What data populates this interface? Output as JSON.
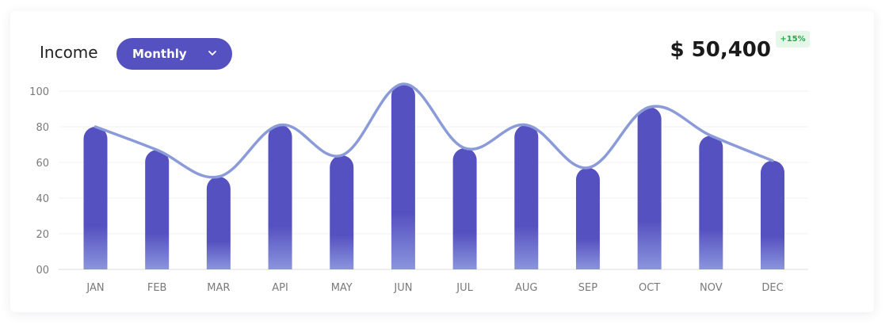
{
  "header": {
    "title": "Income",
    "period_selector": {
      "selected": "Monthly"
    },
    "total_amount": "$ 50,400",
    "change_badge": "+15%"
  },
  "colors": {
    "bar_top": "#5651c0",
    "bar_bottom": "#8a95dd",
    "line": "#8b9ad9",
    "dropdown_bg": "#5651c0",
    "badge_bg": "#e6f7ea",
    "badge_text": "#22a845",
    "grid": "#f0f0f0",
    "axis": "#dddddd"
  },
  "icons": {
    "dropdown": "chevron-down-icon"
  },
  "chart_data": {
    "type": "bar",
    "categories": [
      "JAN",
      "FEB",
      "MAR",
      "API",
      "MAY",
      "JUN",
      "JUL",
      "AUG",
      "SEP",
      "OCT",
      "NOV",
      "DEC"
    ],
    "values": [
      80,
      67,
      52,
      81,
      64,
      104,
      68,
      81,
      57,
      91,
      75,
      61
    ],
    "line_overlay_values": [
      80,
      67,
      52,
      81,
      64,
      104,
      68,
      81,
      57,
      91,
      75,
      61
    ],
    "yticks": [
      "00",
      "20",
      "40",
      "60",
      "80",
      "100"
    ],
    "ylim": [
      0,
      100
    ],
    "grid": true,
    "title": "",
    "xlabel": "",
    "ylabel": ""
  }
}
